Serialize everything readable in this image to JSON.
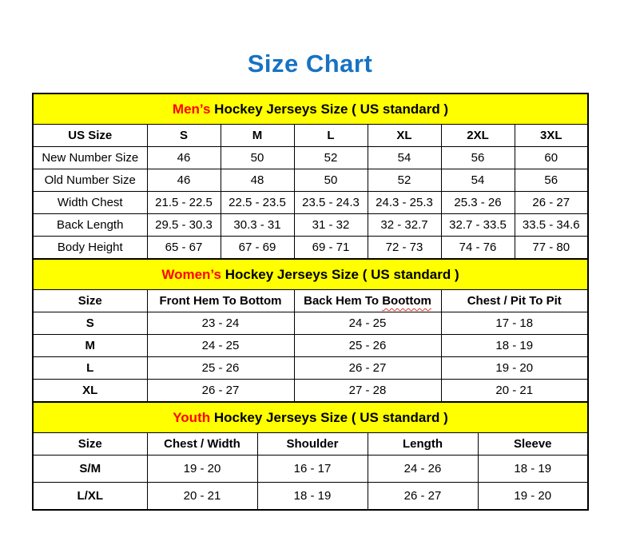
{
  "page_title": "Size Chart",
  "colors": {
    "title_blue": "#1673C4",
    "band_yellow": "#FFFF00",
    "accent_red": "#FF0000",
    "border_black": "#000000"
  },
  "sections": [
    {
      "id": "mens",
      "audience": "Men’s",
      "heading_rest": " Hockey Jerseys Size ( US standard )",
      "columns": [
        "US Size",
        "S",
        "M",
        "L",
        "XL",
        "2XL",
        "3XL"
      ],
      "bold_first_col": false,
      "rows": [
        [
          "New Number Size",
          "46",
          "50",
          "52",
          "54",
          "56",
          "60"
        ],
        [
          "Old Number Size",
          "46",
          "48",
          "50",
          "52",
          "54",
          "56"
        ],
        [
          "Width Chest",
          "21.5 - 22.5",
          "22.5 - 23.5",
          "23.5 - 24.3",
          "24.3 - 25.3",
          "25.3 - 26",
          "26 - 27"
        ],
        [
          "Back Length",
          "29.5 - 30.3",
          "30.3 - 31",
          "31 - 32",
          "32 - 32.7",
          "32.7 - 33.5",
          "33.5 - 34.6"
        ],
        [
          "Body Height",
          "65 - 67",
          "67 - 69",
          "69 - 71",
          "72 - 73",
          "74 - 76",
          "77 - 80"
        ]
      ]
    },
    {
      "id": "womens",
      "audience": "Women’s",
      "heading_rest": " Hockey Jerseys Size ( US standard )",
      "columns": [
        "Size",
        "Front Hem To Bottom",
        "Back Hem To Boottom",
        "Chest / Pit To Pit"
      ],
      "header_spellcheck": {
        "column_index": 2,
        "prefix": "Back Hem To ",
        "word": "Boottom"
      },
      "bold_first_col": true,
      "rows": [
        [
          "S",
          "23 - 24",
          "24 - 25",
          "17 - 18"
        ],
        [
          "M",
          "24 - 25",
          "25 - 26",
          "18 - 19"
        ],
        [
          "L",
          "25 - 26",
          "26 - 27",
          "19 - 20"
        ],
        [
          "XL",
          "26 - 27",
          "27 - 28",
          "20 - 21"
        ]
      ]
    },
    {
      "id": "youth",
      "audience": "Youth",
      "heading_rest": " Hockey Jerseys Size ( US standard )",
      "columns": [
        "Size",
        "Chest / Width",
        "Shoulder",
        "Length",
        "Sleeve"
      ],
      "bold_first_col": true,
      "rows": [
        [
          "S/M",
          "19 - 20",
          "16 - 17",
          "24 - 26",
          "18 - 19"
        ],
        [
          "L/XL",
          "20 - 21",
          "18 - 19",
          "26 - 27",
          "19 - 20"
        ]
      ]
    }
  ]
}
